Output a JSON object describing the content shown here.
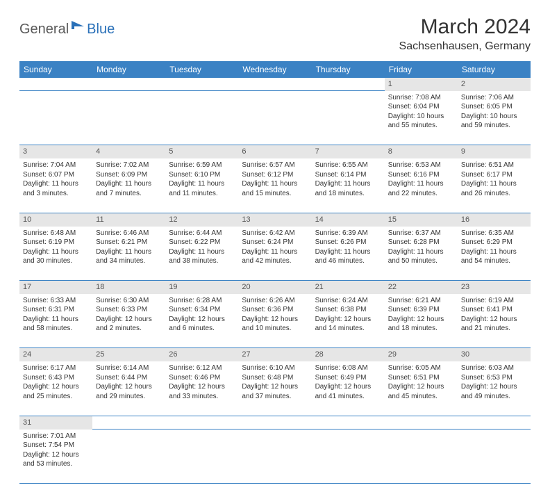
{
  "logo": {
    "general": "General",
    "blue": "Blue"
  },
  "title": "March 2024",
  "location": "Sachsenhausen, Germany",
  "colors": {
    "header_bg": "#3b82c4",
    "header_text": "#ffffff",
    "daynum_bg": "#e6e6e6",
    "rule": "#3b82c4",
    "body_text": "#333333"
  },
  "weekdays": [
    "Sunday",
    "Monday",
    "Tuesday",
    "Wednesday",
    "Thursday",
    "Friday",
    "Saturday"
  ],
  "weeks": [
    [
      null,
      null,
      null,
      null,
      null,
      {
        "n": "1",
        "sr": "Sunrise: 7:08 AM",
        "ss": "Sunset: 6:04 PM",
        "dl1": "Daylight: 10 hours",
        "dl2": "and 55 minutes."
      },
      {
        "n": "2",
        "sr": "Sunrise: 7:06 AM",
        "ss": "Sunset: 6:05 PM",
        "dl1": "Daylight: 10 hours",
        "dl2": "and 59 minutes."
      }
    ],
    [
      {
        "n": "3",
        "sr": "Sunrise: 7:04 AM",
        "ss": "Sunset: 6:07 PM",
        "dl1": "Daylight: 11 hours",
        "dl2": "and 3 minutes."
      },
      {
        "n": "4",
        "sr": "Sunrise: 7:02 AM",
        "ss": "Sunset: 6:09 PM",
        "dl1": "Daylight: 11 hours",
        "dl2": "and 7 minutes."
      },
      {
        "n": "5",
        "sr": "Sunrise: 6:59 AM",
        "ss": "Sunset: 6:10 PM",
        "dl1": "Daylight: 11 hours",
        "dl2": "and 11 minutes."
      },
      {
        "n": "6",
        "sr": "Sunrise: 6:57 AM",
        "ss": "Sunset: 6:12 PM",
        "dl1": "Daylight: 11 hours",
        "dl2": "and 15 minutes."
      },
      {
        "n": "7",
        "sr": "Sunrise: 6:55 AM",
        "ss": "Sunset: 6:14 PM",
        "dl1": "Daylight: 11 hours",
        "dl2": "and 18 minutes."
      },
      {
        "n": "8",
        "sr": "Sunrise: 6:53 AM",
        "ss": "Sunset: 6:16 PM",
        "dl1": "Daylight: 11 hours",
        "dl2": "and 22 minutes."
      },
      {
        "n": "9",
        "sr": "Sunrise: 6:51 AM",
        "ss": "Sunset: 6:17 PM",
        "dl1": "Daylight: 11 hours",
        "dl2": "and 26 minutes."
      }
    ],
    [
      {
        "n": "10",
        "sr": "Sunrise: 6:48 AM",
        "ss": "Sunset: 6:19 PM",
        "dl1": "Daylight: 11 hours",
        "dl2": "and 30 minutes."
      },
      {
        "n": "11",
        "sr": "Sunrise: 6:46 AM",
        "ss": "Sunset: 6:21 PM",
        "dl1": "Daylight: 11 hours",
        "dl2": "and 34 minutes."
      },
      {
        "n": "12",
        "sr": "Sunrise: 6:44 AM",
        "ss": "Sunset: 6:22 PM",
        "dl1": "Daylight: 11 hours",
        "dl2": "and 38 minutes."
      },
      {
        "n": "13",
        "sr": "Sunrise: 6:42 AM",
        "ss": "Sunset: 6:24 PM",
        "dl1": "Daylight: 11 hours",
        "dl2": "and 42 minutes."
      },
      {
        "n": "14",
        "sr": "Sunrise: 6:39 AM",
        "ss": "Sunset: 6:26 PM",
        "dl1": "Daylight: 11 hours",
        "dl2": "and 46 minutes."
      },
      {
        "n": "15",
        "sr": "Sunrise: 6:37 AM",
        "ss": "Sunset: 6:28 PM",
        "dl1": "Daylight: 11 hours",
        "dl2": "and 50 minutes."
      },
      {
        "n": "16",
        "sr": "Sunrise: 6:35 AM",
        "ss": "Sunset: 6:29 PM",
        "dl1": "Daylight: 11 hours",
        "dl2": "and 54 minutes."
      }
    ],
    [
      {
        "n": "17",
        "sr": "Sunrise: 6:33 AM",
        "ss": "Sunset: 6:31 PM",
        "dl1": "Daylight: 11 hours",
        "dl2": "and 58 minutes."
      },
      {
        "n": "18",
        "sr": "Sunrise: 6:30 AM",
        "ss": "Sunset: 6:33 PM",
        "dl1": "Daylight: 12 hours",
        "dl2": "and 2 minutes."
      },
      {
        "n": "19",
        "sr": "Sunrise: 6:28 AM",
        "ss": "Sunset: 6:34 PM",
        "dl1": "Daylight: 12 hours",
        "dl2": "and 6 minutes."
      },
      {
        "n": "20",
        "sr": "Sunrise: 6:26 AM",
        "ss": "Sunset: 6:36 PM",
        "dl1": "Daylight: 12 hours",
        "dl2": "and 10 minutes."
      },
      {
        "n": "21",
        "sr": "Sunrise: 6:24 AM",
        "ss": "Sunset: 6:38 PM",
        "dl1": "Daylight: 12 hours",
        "dl2": "and 14 minutes."
      },
      {
        "n": "22",
        "sr": "Sunrise: 6:21 AM",
        "ss": "Sunset: 6:39 PM",
        "dl1": "Daylight: 12 hours",
        "dl2": "and 18 minutes."
      },
      {
        "n": "23",
        "sr": "Sunrise: 6:19 AM",
        "ss": "Sunset: 6:41 PM",
        "dl1": "Daylight: 12 hours",
        "dl2": "and 21 minutes."
      }
    ],
    [
      {
        "n": "24",
        "sr": "Sunrise: 6:17 AM",
        "ss": "Sunset: 6:43 PM",
        "dl1": "Daylight: 12 hours",
        "dl2": "and 25 minutes."
      },
      {
        "n": "25",
        "sr": "Sunrise: 6:14 AM",
        "ss": "Sunset: 6:44 PM",
        "dl1": "Daylight: 12 hours",
        "dl2": "and 29 minutes."
      },
      {
        "n": "26",
        "sr": "Sunrise: 6:12 AM",
        "ss": "Sunset: 6:46 PM",
        "dl1": "Daylight: 12 hours",
        "dl2": "and 33 minutes."
      },
      {
        "n": "27",
        "sr": "Sunrise: 6:10 AM",
        "ss": "Sunset: 6:48 PM",
        "dl1": "Daylight: 12 hours",
        "dl2": "and 37 minutes."
      },
      {
        "n": "28",
        "sr": "Sunrise: 6:08 AM",
        "ss": "Sunset: 6:49 PM",
        "dl1": "Daylight: 12 hours",
        "dl2": "and 41 minutes."
      },
      {
        "n": "29",
        "sr": "Sunrise: 6:05 AM",
        "ss": "Sunset: 6:51 PM",
        "dl1": "Daylight: 12 hours",
        "dl2": "and 45 minutes."
      },
      {
        "n": "30",
        "sr": "Sunrise: 6:03 AM",
        "ss": "Sunset: 6:53 PM",
        "dl1": "Daylight: 12 hours",
        "dl2": "and 49 minutes."
      }
    ],
    [
      {
        "n": "31",
        "sr": "Sunrise: 7:01 AM",
        "ss": "Sunset: 7:54 PM",
        "dl1": "Daylight: 12 hours",
        "dl2": "and 53 minutes."
      },
      null,
      null,
      null,
      null,
      null,
      null
    ]
  ]
}
